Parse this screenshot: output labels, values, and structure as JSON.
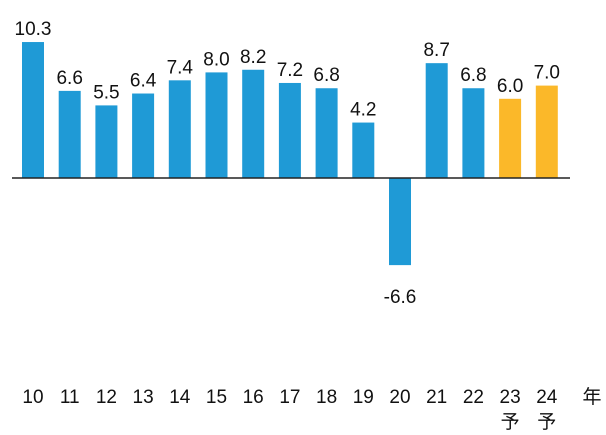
{
  "chart_data": {
    "type": "bar",
    "categories": [
      "10",
      "11",
      "12",
      "13",
      "14",
      "15",
      "16",
      "17",
      "18",
      "19",
      "20",
      "21",
      "22",
      "23\n予",
      "24\n予"
    ],
    "values": [
      10.3,
      6.6,
      5.5,
      6.4,
      7.4,
      8.0,
      8.2,
      7.2,
      6.8,
      4.2,
      -6.6,
      8.7,
      6.8,
      6.0,
      7.0
    ],
    "value_labels": [
      "10.3",
      "6.6",
      "5.5",
      "6.4",
      "7.4",
      "8.0",
      "8.2",
      "7.2",
      "6.8",
      "4.2",
      "-6.6",
      "8.7",
      "6.8",
      "6.0",
      "7.0"
    ],
    "colors": [
      "#1f9ad6",
      "#1f9ad6",
      "#1f9ad6",
      "#1f9ad6",
      "#1f9ad6",
      "#1f9ad6",
      "#1f9ad6",
      "#1f9ad6",
      "#1f9ad6",
      "#1f9ad6",
      "#1f9ad6",
      "#1f9ad6",
      "#1f9ad6",
      "#fbb829",
      "#fbb829"
    ],
    "x_label": "年"
  }
}
